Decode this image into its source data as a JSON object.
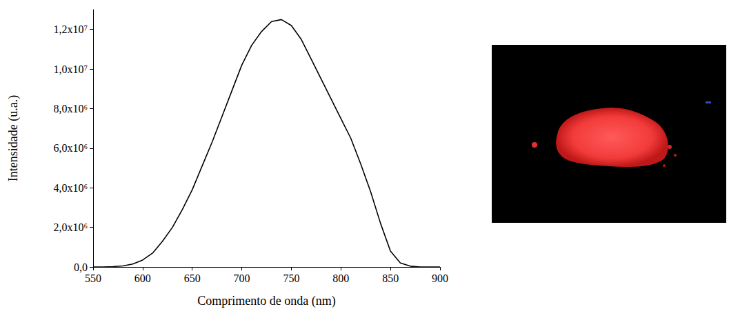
{
  "chart_data": {
    "type": "line",
    "xlabel": "Comprimento de onda (nm)",
    "ylabel": "Intensidade (u.a.)",
    "x": [
      550,
      560,
      570,
      580,
      590,
      600,
      610,
      620,
      630,
      640,
      650,
      660,
      670,
      680,
      690,
      700,
      710,
      720,
      730,
      740,
      750,
      760,
      770,
      780,
      790,
      800,
      810,
      820,
      830,
      840,
      850,
      860,
      870,
      880,
      890,
      900
    ],
    "values": [
      0,
      0,
      20000,
      50000,
      150000,
      350000,
      700000,
      1300000,
      2000000,
      2900000,
      3900000,
      5100000,
      6300000,
      7600000,
      8900000,
      10200000,
      11200000,
      11900000,
      12400000,
      12500000,
      12200000,
      11500000,
      10500000,
      9500000,
      8500000,
      7500000,
      6500000,
      5200000,
      3800000,
      2200000,
      800000,
      200000,
      40000,
      0,
      0,
      0
    ],
    "color": "#000000",
    "xlim": [
      550,
      900
    ],
    "xticks": [
      550,
      600,
      650,
      700,
      750,
      800,
      850,
      900
    ],
    "ylim": [
      0,
      13000000
    ],
    "yticks": [
      {
        "value": 0,
        "label": "0,0"
      },
      {
        "value": 2000000,
        "label": "2,0x10⁶"
      },
      {
        "value": 4000000,
        "label": "4,0x10⁶"
      },
      {
        "value": 6000000,
        "label": "6,0x10⁶"
      },
      {
        "value": 8000000,
        "label": "8,0x10⁶"
      },
      {
        "value": 10000000,
        "label": "1,0x10⁷"
      },
      {
        "value": 12000000,
        "label": "1,2x10⁷"
      }
    ],
    "grid": false
  }
}
